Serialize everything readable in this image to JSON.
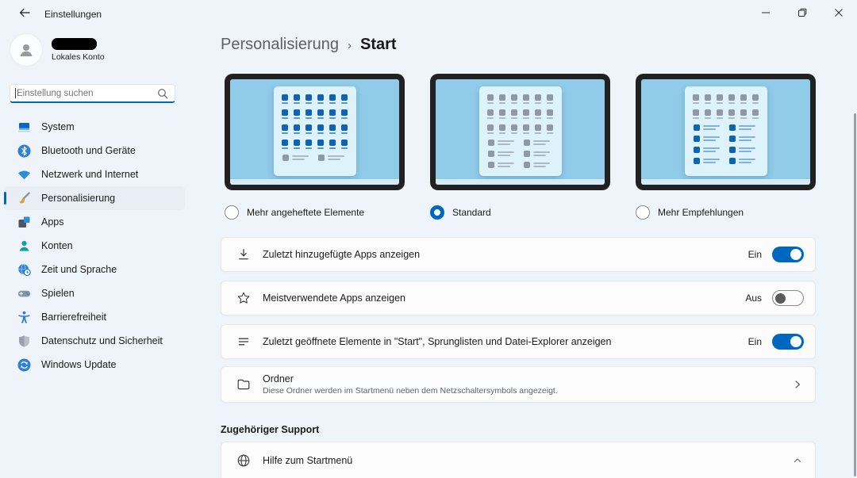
{
  "window": {
    "title": "Einstellungen",
    "control_icons": [
      "minimize-icon",
      "restore-icon",
      "close-icon"
    ]
  },
  "colors": {
    "accent": "#0067c0",
    "background": "#eff3fa",
    "card": "#fcfcfd",
    "monitor_screen": "#90cbe9",
    "tile_blue": "#0e63b5",
    "tile_gray": "#8d99a4"
  },
  "sidebar": {
    "user": {
      "account_type": "Lokales Konto",
      "avatar_icon": "person-avatar-icon"
    },
    "search": {
      "placeholder": "Einstellung suchen",
      "icon": "search-icon"
    },
    "items": [
      {
        "label": "System",
        "icon": "system-icon",
        "selected": false
      },
      {
        "label": "Bluetooth und Geräte",
        "icon": "bluetooth-icon",
        "selected": false
      },
      {
        "label": "Netzwerk und Internet",
        "icon": "network-icon",
        "selected": false
      },
      {
        "label": "Personalisierung",
        "icon": "personalization-icon",
        "selected": true
      },
      {
        "label": "Apps",
        "icon": "apps-icon",
        "selected": false
      },
      {
        "label": "Konten",
        "icon": "accounts-icon",
        "selected": false
      },
      {
        "label": "Zeit und Sprache",
        "icon": "time-language-icon",
        "selected": false
      },
      {
        "label": "Spielen",
        "icon": "gaming-icon",
        "selected": false
      },
      {
        "label": "Barrierefreiheit",
        "icon": "accessibility-icon",
        "selected": false
      },
      {
        "label": "Datenschutz und Sicherheit",
        "icon": "privacy-icon",
        "selected": false
      },
      {
        "label": "Windows Update",
        "icon": "windows-update-icon",
        "selected": false
      }
    ]
  },
  "breadcrumb": {
    "parent": "Personalisierung",
    "separator": "›",
    "current": "Start"
  },
  "layout_options": [
    {
      "label": "Mehr angeheftete Elemente",
      "selected": false,
      "preview": {
        "pinned_rows": 4,
        "pinned_cols": 6,
        "pinned_color": "blue",
        "rec_rows": 1,
        "rec_cols": 2,
        "rec_color": "gray"
      }
    },
    {
      "label": "Standard",
      "selected": true,
      "preview": {
        "pinned_rows": 3,
        "pinned_cols": 6,
        "pinned_color": "gray",
        "rec_rows": 3,
        "rec_cols": 2,
        "rec_color": "gray"
      }
    },
    {
      "label": "Mehr Empfehlungen",
      "selected": false,
      "preview": {
        "pinned_rows": 2,
        "pinned_cols": 6,
        "pinned_color": "gray",
        "rec_rows": 4,
        "rec_cols": 2,
        "rec_color": "blue"
      }
    }
  ],
  "settings_rows": [
    {
      "icon": "download-icon",
      "label": "Zuletzt hinzugefügte Apps anzeigen",
      "state_label": "Ein",
      "on": true
    },
    {
      "icon": "star-icon",
      "label": "Meistverwendete Apps anzeigen",
      "state_label": "Aus",
      "on": false
    },
    {
      "icon": "recent-items-icon",
      "label": "Zuletzt geöffnete Elemente in \"Start\", Sprunglisten und Datei-Explorer anzeigen",
      "state_label": "Ein",
      "on": true
    }
  ],
  "folder_row": {
    "icon": "folder-icon",
    "title": "Ordner",
    "subtitle": "Diese Ordner werden im Startmenü neben dem Netzschaltersymbols angezeigt.",
    "chevron": "chevron-right-icon"
  },
  "support": {
    "header": "Zugehöriger Support",
    "rows": [
      {
        "icon": "web-help-icon",
        "label": "Hilfe zum Startmenü",
        "chevron": "chevron-up-icon"
      }
    ]
  }
}
